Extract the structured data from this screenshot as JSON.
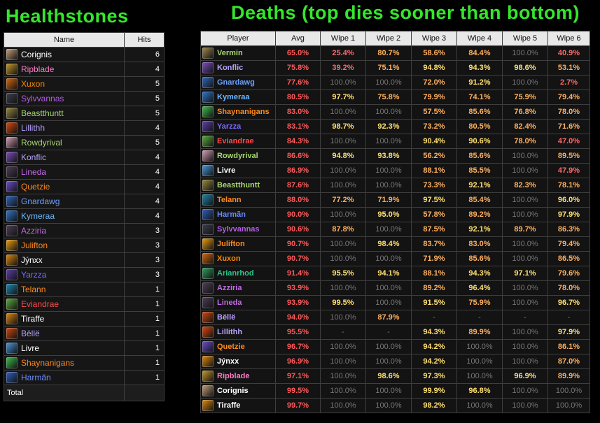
{
  "titles": {
    "healthstones": "Healthstones",
    "deaths": "Deaths (top dies sooner than bottom)"
  },
  "healthstones": {
    "headers": [
      "Name",
      "Hits"
    ],
    "total_label": "Total",
    "rows": [
      {
        "name": "Corignis",
        "hits": "6",
        "color": "#ffffff",
        "icon": "#c9a27a"
      },
      {
        "name": "Ripblade",
        "hits": "4",
        "color": "#ff7bc7",
        "icon": "#c89a2a"
      },
      {
        "name": "Xuxon",
        "hits": "5",
        "color": "#ff8a00",
        "icon": "#d86a10"
      },
      {
        "name": "Sylvvannas",
        "hits": "5",
        "color": "#b45ee8",
        "icon": "#404050"
      },
      {
        "name": "Beastthuntt",
        "hits": "5",
        "color": "#a8d870",
        "icon": "#9a8a40"
      },
      {
        "name": "Lillithh",
        "hits": "4",
        "color": "#b8a2ff",
        "icon": "#e04a10"
      },
      {
        "name": "Rowdyrival",
        "hits": "5",
        "color": "#a8d870",
        "icon": "#d8a0b8"
      },
      {
        "name": "Konflic",
        "hits": "4",
        "color": "#b8a2ff",
        "icon": "#8050c0"
      },
      {
        "name": "Lineda",
        "hits": "4",
        "color": "#c46ae8",
        "icon": "#50405a"
      },
      {
        "name": "Quetzie",
        "hits": "4",
        "color": "#ff8a1e",
        "icon": "#7050d0"
      },
      {
        "name": "Gnardawg",
        "hits": "4",
        "color": "#6aa0ff",
        "icon": "#3068c0"
      },
      {
        "name": "Kymeraa",
        "hits": "4",
        "color": "#6ab8ff",
        "icon": "#3078d0"
      },
      {
        "name": "Azziria",
        "hits": "3",
        "color": "#c46ae8",
        "icon": "#50405a"
      },
      {
        "name": "Julifton",
        "hits": "3",
        "color": "#ff8a1e",
        "icon": "#f0a010"
      },
      {
        "name": "Jýnxx",
        "hits": "3",
        "color": "#ffffff",
        "icon": "#e08a10"
      },
      {
        "name": "Yarzza",
        "hits": "3",
        "color": "#7a6aff",
        "icon": "#6040b0"
      },
      {
        "name": "Telann",
        "hits": "1",
        "color": "#ff8a1e",
        "icon": "#208ab0"
      },
      {
        "name": "Eviandrae",
        "hits": "1",
        "color": "#ff4a4a",
        "icon": "#60b040"
      },
      {
        "name": "Tiraffe",
        "hits": "1",
        "color": "#ffffff",
        "icon": "#e08a10"
      },
      {
        "name": "Bëllë",
        "hits": "1",
        "color": "#b8a2ff",
        "icon": "#d04a10"
      },
      {
        "name": "Livre",
        "hits": "1",
        "color": "#ffffff",
        "icon": "#4a9ae0"
      },
      {
        "name": "Shaynanigans",
        "hits": "1",
        "color": "#ff8a1e",
        "icon": "#40c050"
      },
      {
        "name": "Harmãn",
        "hits": "1",
        "color": "#6a8aff",
        "icon": "#3060c0"
      }
    ]
  },
  "deaths": {
    "headers": [
      "Player",
      "Avg",
      "Wipe 1",
      "Wipe 2",
      "Wipe 3",
      "Wipe 4",
      "Wipe 5",
      "Wipe 6"
    ],
    "colors": {
      "avg": "#ff5a5a",
      "yellow": "#ffe070",
      "red": "#ff6a6a",
      "orange": "#ffb060",
      "na": "#777777"
    },
    "rows": [
      {
        "name": "Vermin",
        "color": "#a8d870",
        "icon": "#a08a50",
        "avg": "65.0%",
        "w": [
          "25.4%",
          "80.7%",
          "58.6%",
          "84.4%",
          "100.0%",
          "40.9%"
        ]
      },
      {
        "name": "Konflic",
        "color": "#b8a2ff",
        "icon": "#8050c0",
        "avg": "75.8%",
        "w": [
          "39.2%",
          "75.1%",
          "94.8%",
          "94.3%",
          "98.6%",
          "53.1%"
        ]
      },
      {
        "name": "Gnardawg",
        "color": "#6aa0ff",
        "icon": "#3068c0",
        "avg": "77.6%",
        "w": [
          "100.0%",
          "100.0%",
          "72.0%",
          "91.2%",
          "100.0%",
          "2.7%"
        ]
      },
      {
        "name": "Kymeraa",
        "color": "#6ab8ff",
        "icon": "#3078d0",
        "avg": "80.5%",
        "w": [
          "97.7%",
          "75.8%",
          "79.9%",
          "74.1%",
          "75.9%",
          "79.4%"
        ]
      },
      {
        "name": "Shaynanigans",
        "color": "#ff8a1e",
        "icon": "#40c050",
        "avg": "83.0%",
        "w": [
          "100.0%",
          "100.0%",
          "57.5%",
          "85.6%",
          "76.8%",
          "78.0%"
        ]
      },
      {
        "name": "Yarzza",
        "color": "#7a6aff",
        "icon": "#6040b0",
        "avg": "83.1%",
        "w": [
          "98.7%",
          "92.3%",
          "73.2%",
          "80.5%",
          "82.4%",
          "71.6%"
        ]
      },
      {
        "name": "Eviandrae",
        "color": "#ff4a4a",
        "icon": "#60b040",
        "avg": "84.3%",
        "w": [
          "100.0%",
          "100.0%",
          "90.4%",
          "90.6%",
          "78.0%",
          "47.0%"
        ]
      },
      {
        "name": "Rowdyrival",
        "color": "#a8d870",
        "icon": "#d8a0b8",
        "avg": "86.6%",
        "w": [
          "94.8%",
          "93.8%",
          "56.2%",
          "85.6%",
          "100.0%",
          "89.5%"
        ]
      },
      {
        "name": "Livre",
        "color": "#ffffff",
        "icon": "#4a9ae0",
        "avg": "86.9%",
        "w": [
          "100.0%",
          "100.0%",
          "88.1%",
          "85.5%",
          "100.0%",
          "47.9%"
        ]
      },
      {
        "name": "Beastthuntt",
        "color": "#a8d870",
        "icon": "#9a8a40",
        "avg": "87.6%",
        "w": [
          "100.0%",
          "100.0%",
          "73.3%",
          "92.1%",
          "82.3%",
          "78.1%"
        ]
      },
      {
        "name": "Telann",
        "color": "#ff8a1e",
        "icon": "#208ab0",
        "avg": "88.0%",
        "w": [
          "77.2%",
          "71.9%",
          "97.5%",
          "85.4%",
          "100.0%",
          "96.0%"
        ]
      },
      {
        "name": "Harmãn",
        "color": "#6a8aff",
        "icon": "#3060c0",
        "avg": "90.0%",
        "w": [
          "100.0%",
          "95.0%",
          "57.8%",
          "89.2%",
          "100.0%",
          "97.9%"
        ]
      },
      {
        "name": "Sylvvannas",
        "color": "#b45ee8",
        "icon": "#404050",
        "avg": "90.6%",
        "w": [
          "87.8%",
          "100.0%",
          "87.5%",
          "92.1%",
          "89.7%",
          "86.3%"
        ]
      },
      {
        "name": "Julifton",
        "color": "#ff8a1e",
        "icon": "#f0a010",
        "avg": "90.7%",
        "w": [
          "100.0%",
          "98.4%",
          "83.7%",
          "83.0%",
          "100.0%",
          "79.4%"
        ]
      },
      {
        "name": "Xuxon",
        "color": "#ff8a00",
        "icon": "#d86a10",
        "avg": "90.7%",
        "w": [
          "100.0%",
          "100.0%",
          "71.9%",
          "85.6%",
          "100.0%",
          "86.5%"
        ]
      },
      {
        "name": "Arianrhod",
        "color": "#2ec48a",
        "icon": "#30a060",
        "avg": "91.4%",
        "w": [
          "95.5%",
          "94.1%",
          "88.1%",
          "94.3%",
          "97.1%",
          "79.6%"
        ]
      },
      {
        "name": "Azziria",
        "color": "#c46ae8",
        "icon": "#50405a",
        "avg": "93.9%",
        "w": [
          "100.0%",
          "100.0%",
          "89.2%",
          "96.4%",
          "100.0%",
          "78.0%"
        ]
      },
      {
        "name": "Lineda",
        "color": "#c46ae8",
        "icon": "#50405a",
        "avg": "93.9%",
        "w": [
          "99.5%",
          "100.0%",
          "91.5%",
          "75.9%",
          "100.0%",
          "96.7%"
        ]
      },
      {
        "name": "Bëllë",
        "color": "#b8a2ff",
        "icon": "#d04a10",
        "avg": "94.0%",
        "w": [
          "100.0%",
          "87.9%",
          "-",
          "-",
          "-",
          "-"
        ]
      },
      {
        "name": "Lillithh",
        "color": "#b8a2ff",
        "icon": "#e04a10",
        "avg": "95.5%",
        "w": [
          "-",
          "-",
          "94.3%",
          "89.9%",
          "100.0%",
          "97.9%"
        ]
      },
      {
        "name": "Quetzie",
        "color": "#ff8a1e",
        "icon": "#7050d0",
        "avg": "96.7%",
        "w": [
          "100.0%",
          "100.0%",
          "94.2%",
          "100.0%",
          "100.0%",
          "86.1%"
        ]
      },
      {
        "name": "Jýnxx",
        "color": "#ffffff",
        "icon": "#e08a10",
        "avg": "96.9%",
        "w": [
          "100.0%",
          "100.0%",
          "94.2%",
          "100.0%",
          "100.0%",
          "87.0%"
        ]
      },
      {
        "name": "Ripblade",
        "color": "#ff7bc7",
        "icon": "#c89a2a",
        "avg": "97.1%",
        "w": [
          "100.0%",
          "98.6%",
          "97.3%",
          "100.0%",
          "96.9%",
          "89.9%"
        ]
      },
      {
        "name": "Corignis",
        "color": "#ffffff",
        "icon": "#c9a27a",
        "avg": "99.5%",
        "w": [
          "100.0%",
          "100.0%",
          "99.9%",
          "96.8%",
          "100.0%",
          "100.0%"
        ]
      },
      {
        "name": "Tiraffe",
        "color": "#ffffff",
        "icon": "#e08a10",
        "avg": "99.7%",
        "w": [
          "100.0%",
          "100.0%",
          "98.2%",
          "100.0%",
          "100.0%",
          "100.0%"
        ]
      }
    ]
  }
}
